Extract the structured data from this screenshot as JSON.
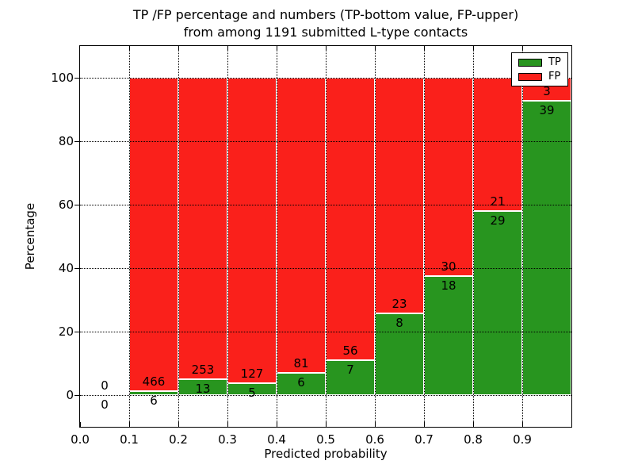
{
  "figure": {
    "title_line1": "TP /FP percentage and numbers (TP-bottom value, FP-upper)",
    "title_line2": "from among 1191 submitted L-type contacts"
  },
  "chart_data": {
    "type": "bar",
    "stacked": true,
    "normalized_to_percent": true,
    "title": "TP /FP percentage and numbers (TP-bottom value, FP-upper) from among 1191 submitted L-type contacts",
    "xlabel": "Predicted probability",
    "ylabel": "Percentage",
    "total_contacts": 1191,
    "bin_edges": [
      0.0,
      0.1,
      0.2,
      0.3,
      0.4,
      0.5,
      0.6,
      0.7,
      0.8,
      0.9,
      1.0
    ],
    "categories": [
      "0.0-0.1",
      "0.1-0.2",
      "0.2-0.3",
      "0.3-0.4",
      "0.4-0.5",
      "0.5-0.6",
      "0.6-0.7",
      "0.7-0.8",
      "0.8-0.9",
      "0.9-1.0"
    ],
    "series": [
      {
        "name": "TP",
        "color": "#28951f",
        "counts": [
          0,
          6,
          13,
          5,
          6,
          7,
          8,
          18,
          29,
          39
        ]
      },
      {
        "name": "FP",
        "color": "#fa201b",
        "counts": [
          0,
          466,
          253,
          127,
          81,
          56,
          23,
          30,
          21,
          3
        ]
      }
    ],
    "tp_percent_by_bin": [
      0,
      1.27,
      4.89,
      3.79,
      6.9,
      11.11,
      25.81,
      37.5,
      58.0,
      92.86
    ],
    "x_tick_values": [
      0.0,
      0.1,
      0.2,
      0.3,
      0.4,
      0.5,
      0.6,
      0.7,
      0.8,
      0.9
    ],
    "x_tick_labels": [
      "0.0",
      "0.1",
      "0.2",
      "0.3",
      "0.4",
      "0.5",
      "0.6",
      "0.7",
      "0.8",
      "0.9"
    ],
    "y_tick_values": [
      0,
      20,
      40,
      60,
      80,
      100
    ],
    "y_tick_labels": [
      "0",
      "20",
      "40",
      "60",
      "80",
      "100"
    ],
    "xlim": [
      0.0,
      1.0
    ],
    "ylim": [
      -10,
      110
    ],
    "grid": {
      "style": "dotted",
      "color": "#000000",
      "horizontal": true,
      "vertical": true
    },
    "legend": {
      "position": "upper right",
      "items": [
        "TP",
        "FP"
      ]
    },
    "bar_edge_color": "#ffffff",
    "background_color": "#ffffff"
  }
}
